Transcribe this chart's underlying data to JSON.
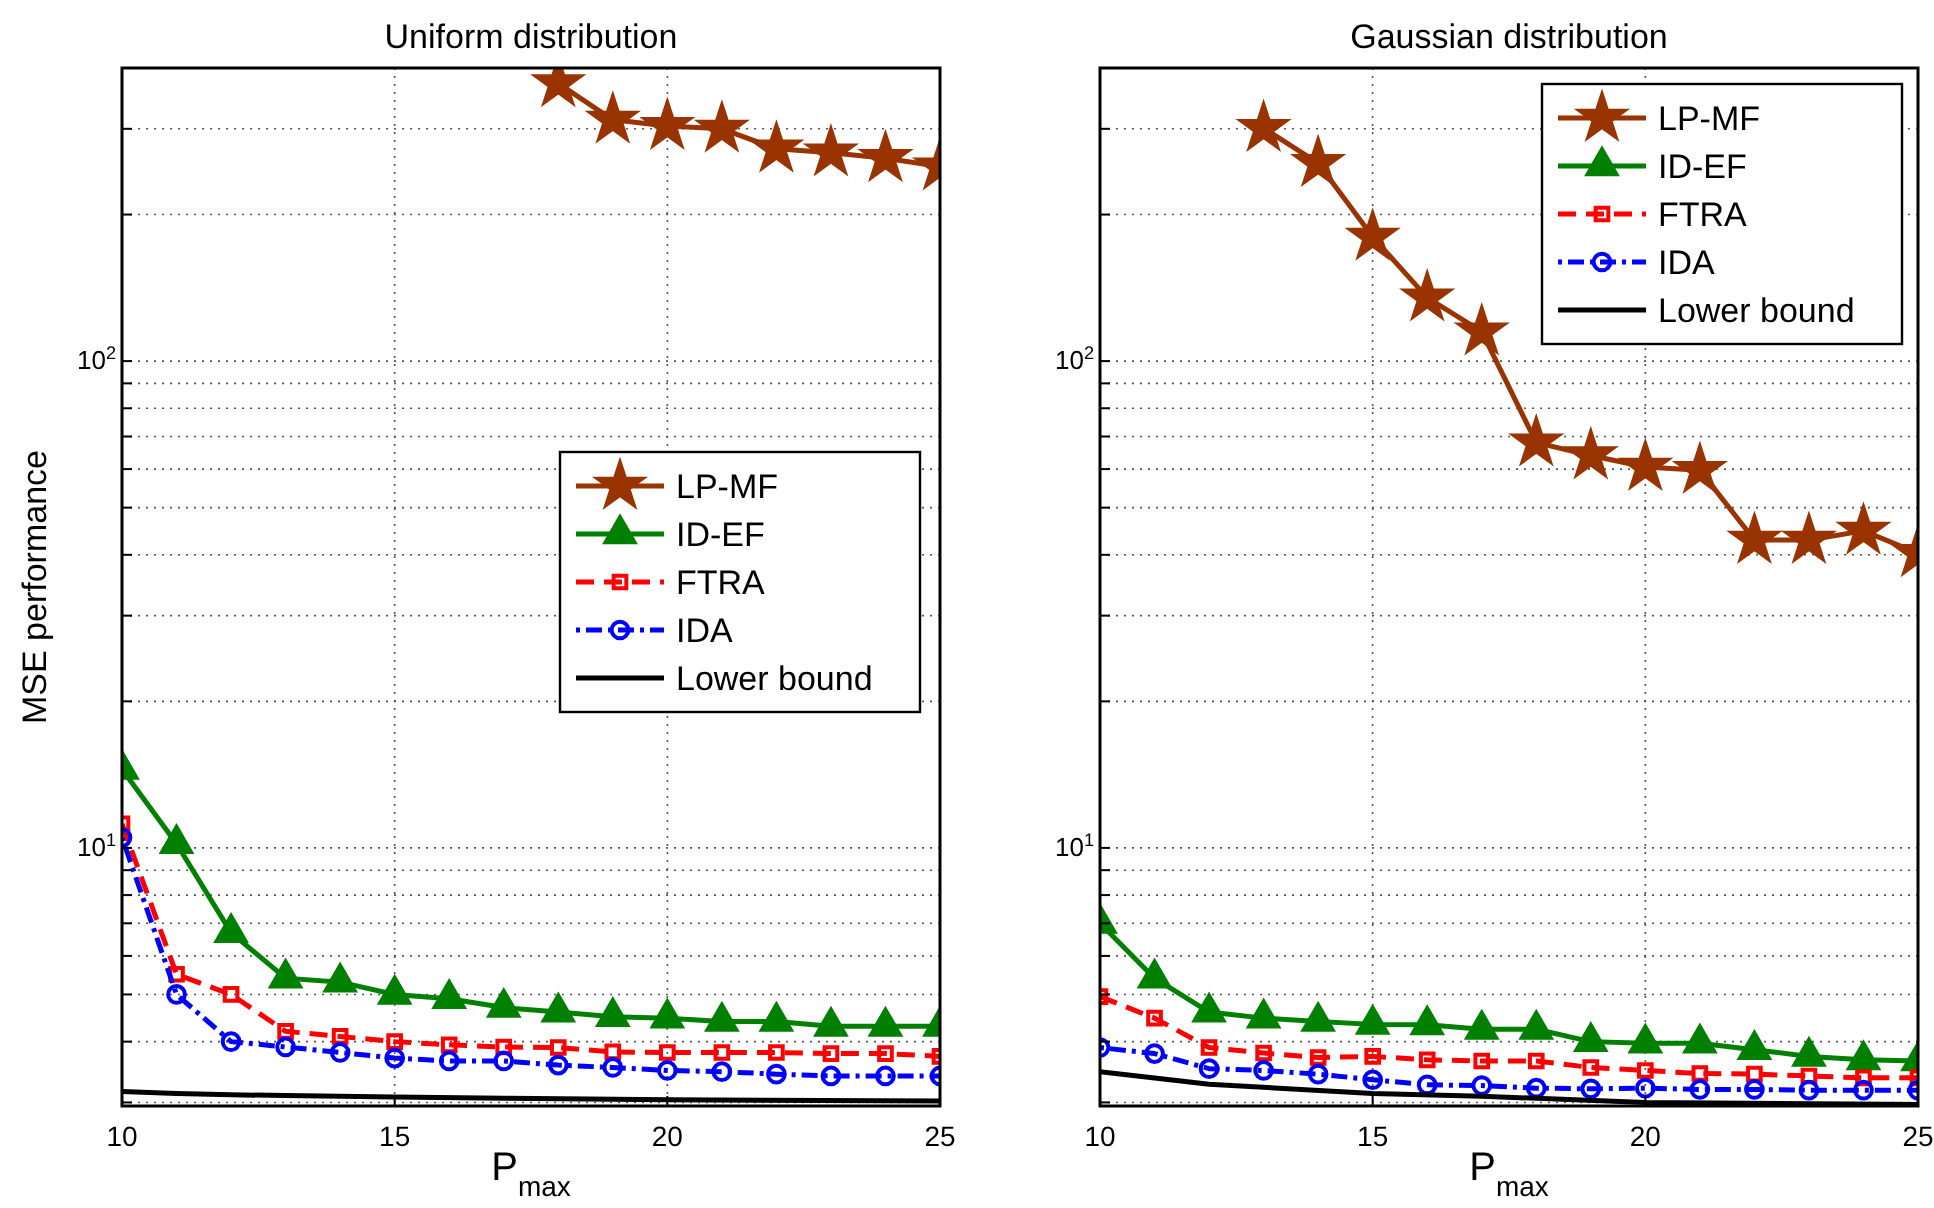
{
  "chart_data": [
    {
      "type": "line",
      "title": "Uniform distribution",
      "xlabel": "P$_{max}$",
      "ylabel": "MSE performance",
      "log": "y",
      "grid": true,
      "legend": "right",
      "xlim": [
        10,
        25
      ],
      "ylim": [
        2.95,
        400
      ],
      "xticks": [
        10,
        15,
        20,
        25
      ],
      "yticks": [
        {
          "value": 3,
          "label": null
        },
        {
          "value": 4,
          "label": null
        },
        {
          "value": 5,
          "label": null
        },
        {
          "value": 6,
          "label": null
        },
        {
          "value": 7,
          "label": null
        },
        {
          "value": 8,
          "label": null
        },
        {
          "value": 9,
          "label": null
        },
        {
          "value": 10,
          "label": "10$^{1}$"
        },
        {
          "value": 20,
          "label": null
        },
        {
          "value": 30,
          "label": null
        },
        {
          "value": 40,
          "label": null
        },
        {
          "value": 50,
          "label": null
        },
        {
          "value": 60,
          "label": null
        },
        {
          "value": 70,
          "label": null
        },
        {
          "value": 80,
          "label": null
        },
        {
          "value": 90,
          "label": null
        },
        {
          "value": 100,
          "label": "10$^{2}$"
        },
        {
          "value": 200,
          "label": null
        },
        {
          "value": 300,
          "label": null
        },
        {
          "value": 400,
          "label": null
        }
      ],
      "x": [
        10,
        11,
        12,
        13,
        14,
        15,
        16,
        17,
        18,
        19,
        20,
        21,
        22,
        23,
        24,
        25
      ],
      "series": [
        {
          "name": "LP-MF",
          "color": "#993300",
          "marker": "star",
          "line_style": "solid",
          "values": [
            null,
            null,
            null,
            null,
            null,
            null,
            null,
            null,
            372,
            313,
            304,
            300,
            273,
            268,
            261,
            251
          ]
        },
        {
          "name": "ID-EF",
          "color": "#008000",
          "marker": "triangle",
          "line_style": "solid",
          "values": [
            14.5,
            10.2,
            6.7,
            5.4,
            5.3,
            5.0,
            4.9,
            4.7,
            4.6,
            4.5,
            4.47,
            4.4,
            4.4,
            4.3,
            4.3,
            4.3
          ]
        },
        {
          "name": "FTRA",
          "color": "#ff0000",
          "marker": "square",
          "line_style": "dashed",
          "values": [
            11.2,
            5.5,
            5.0,
            4.2,
            4.1,
            4.0,
            3.94,
            3.9,
            3.89,
            3.81,
            3.8,
            3.8,
            3.8,
            3.78,
            3.78,
            3.73
          ]
        },
        {
          "name": "IDA",
          "color": "#0000ff",
          "marker": "circle",
          "line_style": "dotted",
          "values": [
            10.5,
            5.0,
            4.0,
            3.9,
            3.8,
            3.7,
            3.65,
            3.65,
            3.58,
            3.54,
            3.49,
            3.47,
            3.43,
            3.4,
            3.4,
            3.4
          ]
        },
        {
          "name": "Lower bound",
          "color": "#000000",
          "marker": "none",
          "line_style": "solid",
          "x": [
            10,
            11,
            12,
            13,
            15,
            17,
            20,
            25
          ],
          "values": [
            3.16,
            3.13,
            3.11,
            3.1,
            3.08,
            3.06,
            3.04,
            3.02
          ]
        }
      ]
    },
    {
      "type": "line",
      "title": "Gaussian distribution",
      "xlabel": "P$_{max}$",
      "log": "y",
      "grid": true,
      "legend": "top right",
      "xlim": [
        10,
        25
      ],
      "ylim": [
        2.95,
        400
      ],
      "xticks": [
        10,
        15,
        20,
        25
      ],
      "yticks": [
        {
          "value": 3,
          "label": null
        },
        {
          "value": 4,
          "label": null
        },
        {
          "value": 5,
          "label": null
        },
        {
          "value": 6,
          "label": null
        },
        {
          "value": 7,
          "label": null
        },
        {
          "value": 8,
          "label": null
        },
        {
          "value": 9,
          "label": null
        },
        {
          "value": 10,
          "label": "10$^{1}$"
        },
        {
          "value": 20,
          "label": null
        },
        {
          "value": 30,
          "label": null
        },
        {
          "value": 40,
          "label": null
        },
        {
          "value": 50,
          "label": null
        },
        {
          "value": 60,
          "label": null
        },
        {
          "value": 70,
          "label": null
        },
        {
          "value": 80,
          "label": null
        },
        {
          "value": 90,
          "label": null
        },
        {
          "value": 100,
          "label": "10$^{2}$"
        },
        {
          "value": 200,
          "label": null
        },
        {
          "value": 300,
          "label": null
        },
        {
          "value": 400,
          "label": null
        }
      ],
      "x": [
        10,
        11,
        12,
        13,
        14,
        15,
        16,
        17,
        18,
        19,
        20,
        21,
        22,
        23,
        24,
        25
      ],
      "series": [
        {
          "name": "LP-MF",
          "color": "#993300",
          "marker": "star",
          "line_style": "solid",
          "values": [
            null,
            null,
            null,
            301,
            255,
            180,
            135,
            115,
            68,
            64,
            60.6,
            59.7,
            42.9,
            42.9,
            44.8,
            40.3
          ]
        },
        {
          "name": "ID-EF",
          "color": "#008000",
          "marker": "triangle",
          "line_style": "solid",
          "values": [
            7.0,
            5.4,
            4.6,
            4.47,
            4.4,
            4.34,
            4.33,
            4.24,
            4.24,
            4.0,
            3.97,
            3.97,
            3.85,
            3.73,
            3.67,
            3.65
          ]
        },
        {
          "name": "FTRA",
          "color": "#ff0000",
          "marker": "square",
          "line_style": "dashed",
          "values": [
            4.95,
            4.47,
            3.89,
            3.79,
            3.71,
            3.73,
            3.67,
            3.65,
            3.65,
            3.54,
            3.49,
            3.44,
            3.43,
            3.4,
            3.37,
            3.37
          ]
        },
        {
          "name": "IDA",
          "color": "#0000ff",
          "marker": "circle",
          "line_style": "dotted",
          "values": [
            3.89,
            3.78,
            3.52,
            3.49,
            3.43,
            3.34,
            3.26,
            3.25,
            3.21,
            3.2,
            3.21,
            3.19,
            3.19,
            3.18,
            3.18,
            3.18
          ]
        },
        {
          "name": "Lower bound",
          "color": "#000000",
          "marker": "none",
          "line_style": "solid",
          "x": [
            10,
            12,
            15,
            17,
            20,
            25
          ],
          "values": [
            3.47,
            3.27,
            3.13,
            3.09,
            3.0,
            2.97
          ]
        }
      ]
    }
  ]
}
